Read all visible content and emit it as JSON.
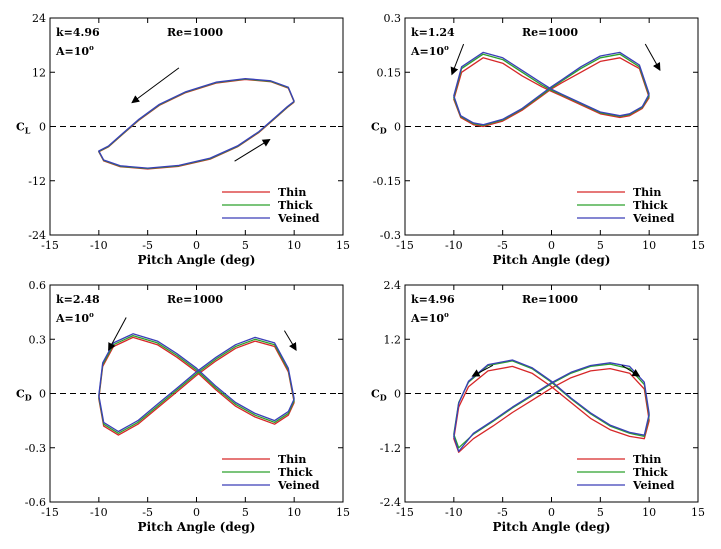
{
  "chart_data": [
    {
      "type": "line",
      "xlabel": "Pitch Angle (deg)",
      "ylabel": "C",
      "ylabel_sub": "L",
      "xlim": [
        -15,
        15
      ],
      "ylim": [
        -24,
        24
      ],
      "xticks": [
        -15,
        -10,
        -5,
        0,
        5,
        10,
        15
      ],
      "xtick_labels": [
        "-15",
        "-10",
        "-5",
        "0",
        "5",
        "10",
        "15"
      ],
      "yticks": [
        -24,
        -12,
        0,
        12,
        24
      ],
      "ytick_labels": [
        "-24",
        "-12",
        "0",
        "12",
        "24"
      ],
      "annotations": {
        "k": "k=4.96",
        "A": "A=10",
        "Re": "Re=1000"
      },
      "zero_line": true,
      "legend_position": "bottom-right",
      "series": [
        {
          "name": "Thin",
          "color": "#d62728",
          "x": [
            10,
            9.4,
            7.6,
            5,
            2,
            -1.1,
            -3.8,
            -5.9,
            -7.7,
            -9,
            -10,
            -9.5,
            -7.8,
            -5,
            -1.8,
            1.4,
            4.2,
            6.4,
            8.1,
            9.3,
            10
          ],
          "y": [
            5.4,
            8.5,
            9.9,
            10.4,
            9.6,
            7.5,
            4.7,
            1.4,
            -2.0,
            -4.5,
            -5.6,
            -7.6,
            -8.9,
            -9.4,
            -8.8,
            -7.2,
            -4.5,
            -1.3,
            1.9,
            4.2,
            5.4
          ]
        },
        {
          "name": "Thick",
          "color": "#2ca02c",
          "x": [
            10,
            9.4,
            7.6,
            5,
            2,
            -1.1,
            -3.8,
            -5.9,
            -7.7,
            -9,
            -10,
            -9.5,
            -7.8,
            -5,
            -1.8,
            1.4,
            4.2,
            6.4,
            8.1,
            9.3,
            10
          ],
          "y": [
            5.5,
            8.6,
            10.0,
            10.5,
            9.7,
            7.6,
            4.8,
            1.5,
            -1.9,
            -4.4,
            -5.5,
            -7.5,
            -8.8,
            -9.3,
            -8.7,
            -7.1,
            -4.4,
            -1.2,
            2.0,
            4.3,
            5.5
          ]
        },
        {
          "name": "Veined",
          "color": "#3a3fb8",
          "x": [
            10,
            9.4,
            7.6,
            5,
            2,
            -1.1,
            -3.8,
            -5.9,
            -7.7,
            -9,
            -10,
            -9.5,
            -7.8,
            -5,
            -1.8,
            1.4,
            4.2,
            6.4,
            8.1,
            9.3,
            10
          ],
          "y": [
            5.6,
            8.7,
            10.1,
            10.6,
            9.8,
            7.7,
            4.9,
            1.6,
            -1.8,
            -4.3,
            -5.4,
            -7.4,
            -8.7,
            -9.2,
            -8.6,
            -7.0,
            -4.3,
            -1.1,
            2.1,
            4.4,
            5.6
          ]
        }
      ]
    },
    {
      "type": "line",
      "xlabel": "Pitch Angle (deg)",
      "ylabel": "C",
      "ylabel_sub": "D",
      "xlim": [
        -15,
        15
      ],
      "ylim": [
        -0.3,
        0.3
      ],
      "xticks": [
        -15,
        -10,
        -5,
        0,
        5,
        10,
        15
      ],
      "xtick_labels": [
        "-15",
        "-10",
        "-5",
        "0",
        "5",
        "10",
        "15"
      ],
      "yticks": [
        -0.3,
        -0.15,
        0,
        0.15,
        0.3
      ],
      "ytick_labels": [
        "-0.3",
        "-0.15",
        "0",
        "0.15",
        "0.3"
      ],
      "annotations": {
        "k": "k=1.24",
        "A": "A=10",
        "Re": "Re=1000"
      },
      "zero_line": true,
      "legend_position": "bottom-right",
      "series": [
        {
          "name": "Thin",
          "color": "#d62728",
          "x": [
            10,
            9,
            7,
            5,
            3,
            1,
            0,
            -1,
            -3,
            -5,
            -7,
            -8,
            -9.3,
            -10,
            -9.2,
            -7,
            -5,
            -3,
            -1,
            0,
            1,
            3,
            5,
            7,
            8,
            9.3,
            10
          ],
          "y": [
            0.08,
            0.16,
            0.19,
            0.18,
            0.15,
            0.12,
            0.104,
            0.084,
            0.045,
            0.015,
            0.0,
            0.005,
            0.025,
            0.075,
            0.15,
            0.19,
            0.175,
            0.14,
            0.11,
            0.097,
            0.085,
            0.06,
            0.035,
            0.025,
            0.03,
            0.05,
            0.08
          ]
        },
        {
          "name": "Thick",
          "color": "#2ca02c",
          "x": [
            10,
            9,
            7,
            5,
            3,
            1,
            0,
            -1,
            -3,
            -5,
            -7,
            -8,
            -9.3,
            -10,
            -9.2,
            -7,
            -5,
            -3,
            -1,
            0,
            1,
            3,
            5,
            7,
            8,
            9.3,
            10
          ],
          "y": [
            0.085,
            0.165,
            0.2,
            0.19,
            0.16,
            0.125,
            0.107,
            0.087,
            0.048,
            0.018,
            0.003,
            0.008,
            0.028,
            0.08,
            0.16,
            0.2,
            0.185,
            0.15,
            0.115,
            0.1,
            0.088,
            0.063,
            0.038,
            0.028,
            0.033,
            0.053,
            0.085
          ]
        },
        {
          "name": "Veined",
          "color": "#3a3fb8",
          "x": [
            10,
            9,
            7,
            5,
            3,
            1,
            0,
            -1,
            -3,
            -5,
            -7,
            -8,
            -9.3,
            -10,
            -9.2,
            -7,
            -5,
            -3,
            -1,
            0,
            1,
            3,
            5,
            7,
            8,
            9.3,
            10
          ],
          "y": [
            0.09,
            0.17,
            0.205,
            0.195,
            0.165,
            0.128,
            0.11,
            0.09,
            0.05,
            0.02,
            0.005,
            0.01,
            0.03,
            0.085,
            0.165,
            0.205,
            0.19,
            0.155,
            0.12,
            0.103,
            0.09,
            0.065,
            0.04,
            0.03,
            0.035,
            0.055,
            0.09
          ]
        }
      ]
    },
    {
      "type": "line",
      "xlabel": "Pitch Angle (deg)",
      "ylabel": "C",
      "ylabel_sub": "D",
      "xlim": [
        -15,
        15
      ],
      "ylim": [
        -0.6,
        0.6
      ],
      "xticks": [
        -15,
        -10,
        -5,
        0,
        5,
        10,
        15
      ],
      "xtick_labels": [
        "-15",
        "-10",
        "-5",
        "0",
        "5",
        "10",
        "15"
      ],
      "yticks": [
        -0.6,
        -0.3,
        0,
        0.3,
        0.6
      ],
      "ytick_labels": [
        "-0.6",
        "-0.3",
        "0",
        "0.3",
        "0.6"
      ],
      "annotations": {
        "k": "k=2.48",
        "A": "A=10",
        "Re": "Re=1000"
      },
      "zero_line": true,
      "legend_position": "bottom-right",
      "series": [
        {
          "name": "Thin",
          "color": "#d62728",
          "x": [
            10,
            9.4,
            8,
            6,
            4,
            2,
            0,
            -2,
            -4,
            -6,
            -8,
            -9.5,
            -10,
            -9.6,
            -8.5,
            -6.5,
            -4,
            -2,
            0,
            2,
            4,
            6,
            8,
            9.4,
            10
          ],
          "y": [
            -0.05,
            0.12,
            0.26,
            0.29,
            0.25,
            0.18,
            0.1,
            0.01,
            -0.08,
            -0.17,
            -0.23,
            -0.18,
            -0.03,
            0.15,
            0.26,
            0.31,
            0.27,
            0.2,
            0.12,
            0.02,
            -0.07,
            -0.13,
            -0.17,
            -0.12,
            -0.05
          ]
        },
        {
          "name": "Thick",
          "color": "#2ca02c",
          "x": [
            10,
            9.4,
            8,
            6,
            4,
            2,
            0,
            -2,
            -4,
            -6,
            -8,
            -9.5,
            -10,
            -9.6,
            -8.5,
            -6.5,
            -4,
            -2,
            0,
            2,
            4,
            6,
            8,
            9.4,
            10
          ],
          "y": [
            -0.04,
            0.13,
            0.27,
            0.3,
            0.26,
            0.19,
            0.11,
            0.02,
            -0.07,
            -0.16,
            -0.22,
            -0.17,
            -0.02,
            0.16,
            0.27,
            0.32,
            0.28,
            0.21,
            0.13,
            0.03,
            -0.06,
            -0.12,
            -0.16,
            -0.11,
            -0.04
          ]
        },
        {
          "name": "Veined",
          "color": "#3a3fb8",
          "x": [
            10,
            9.4,
            8,
            6,
            4,
            2,
            0,
            -2,
            -4,
            -6,
            -8,
            -9.5,
            -10,
            -9.6,
            -8.5,
            -6.5,
            -4,
            -2,
            0,
            2,
            4,
            6,
            8,
            9.4,
            10
          ],
          "y": [
            -0.03,
            0.14,
            0.28,
            0.31,
            0.27,
            0.2,
            0.12,
            0.03,
            -0.06,
            -0.15,
            -0.21,
            -0.16,
            -0.01,
            0.17,
            0.28,
            0.33,
            0.29,
            0.22,
            0.14,
            0.04,
            -0.05,
            -0.11,
            -0.15,
            -0.1,
            -0.03
          ]
        }
      ]
    },
    {
      "type": "line",
      "xlabel": "Pitch Angle (deg)",
      "ylabel": "C",
      "ylabel_sub": "D",
      "xlim": [
        -15,
        15
      ],
      "ylim": [
        -2.4,
        2.4
      ],
      "xticks": [
        -15,
        -10,
        -5,
        0,
        5,
        10,
        15
      ],
      "xtick_labels": [
        "-15",
        "-10",
        "-5",
        "0",
        "5",
        "10",
        "15"
      ],
      "yticks": [
        -2.4,
        -1.2,
        0,
        1.2,
        2.4
      ],
      "ytick_labels": [
        "-2.4",
        "-1.2",
        "0",
        "1.2",
        "2.4"
      ],
      "annotations": {
        "k": "k=4.96",
        "A": "A=10",
        "Re": "Re=1000"
      },
      "zero_line": true,
      "legend_position": "bottom-right",
      "series": [
        {
          "name": "Thin",
          "color": "#d62728",
          "x": [
            10,
            9.5,
            8,
            6,
            4,
            2,
            0,
            -2,
            -4,
            -6,
            -8,
            -9.5,
            -10,
            -9.5,
            -8.5,
            -6.5,
            -4,
            -2,
            0,
            2,
            4,
            6,
            8,
            9.5,
            10
          ],
          "y": [
            -0.6,
            0.1,
            0.45,
            0.55,
            0.5,
            0.35,
            0.12,
            -0.15,
            -0.42,
            -0.72,
            -1.0,
            -1.3,
            -1.0,
            -0.3,
            0.15,
            0.5,
            0.6,
            0.45,
            0.15,
            -0.2,
            -0.55,
            -0.8,
            -0.95,
            -1.0,
            -0.6
          ]
        },
        {
          "name": "Thick",
          "color": "#2ca02c",
          "x": [
            10,
            9.5,
            8,
            6,
            4,
            2,
            0,
            -2,
            -4,
            -6,
            -8,
            -9.5,
            -10,
            -9.5,
            -8.5,
            -6.5,
            -4,
            -2,
            0,
            2,
            4,
            6,
            8,
            9.5,
            10
          ],
          "y": [
            -0.5,
            0.2,
            0.55,
            0.65,
            0.6,
            0.45,
            0.22,
            -0.05,
            -0.32,
            -0.62,
            -0.9,
            -1.2,
            -0.9,
            -0.2,
            0.25,
            0.62,
            0.72,
            0.55,
            0.25,
            -0.12,
            -0.45,
            -0.72,
            -0.88,
            -0.95,
            -0.5
          ]
        },
        {
          "name": "Veined",
          "color": "#3a3fb8",
          "x": [
            10,
            9.5,
            8,
            6,
            4,
            2,
            0,
            -2,
            -4,
            -6,
            -8,
            -9.5,
            -10,
            -9.5,
            -8.5,
            -6.5,
            -4,
            -2,
            0,
            2,
            4,
            6,
            8,
            9.5,
            10
          ],
          "y": [
            -0.45,
            0.25,
            0.6,
            0.68,
            0.62,
            0.47,
            0.24,
            -0.03,
            -0.3,
            -0.6,
            -0.88,
            -1.28,
            -0.95,
            -0.22,
            0.27,
            0.64,
            0.74,
            0.57,
            0.27,
            -0.1,
            -0.43,
            -0.7,
            -0.86,
            -0.92,
            -0.45
          ]
        }
      ]
    }
  ]
}
